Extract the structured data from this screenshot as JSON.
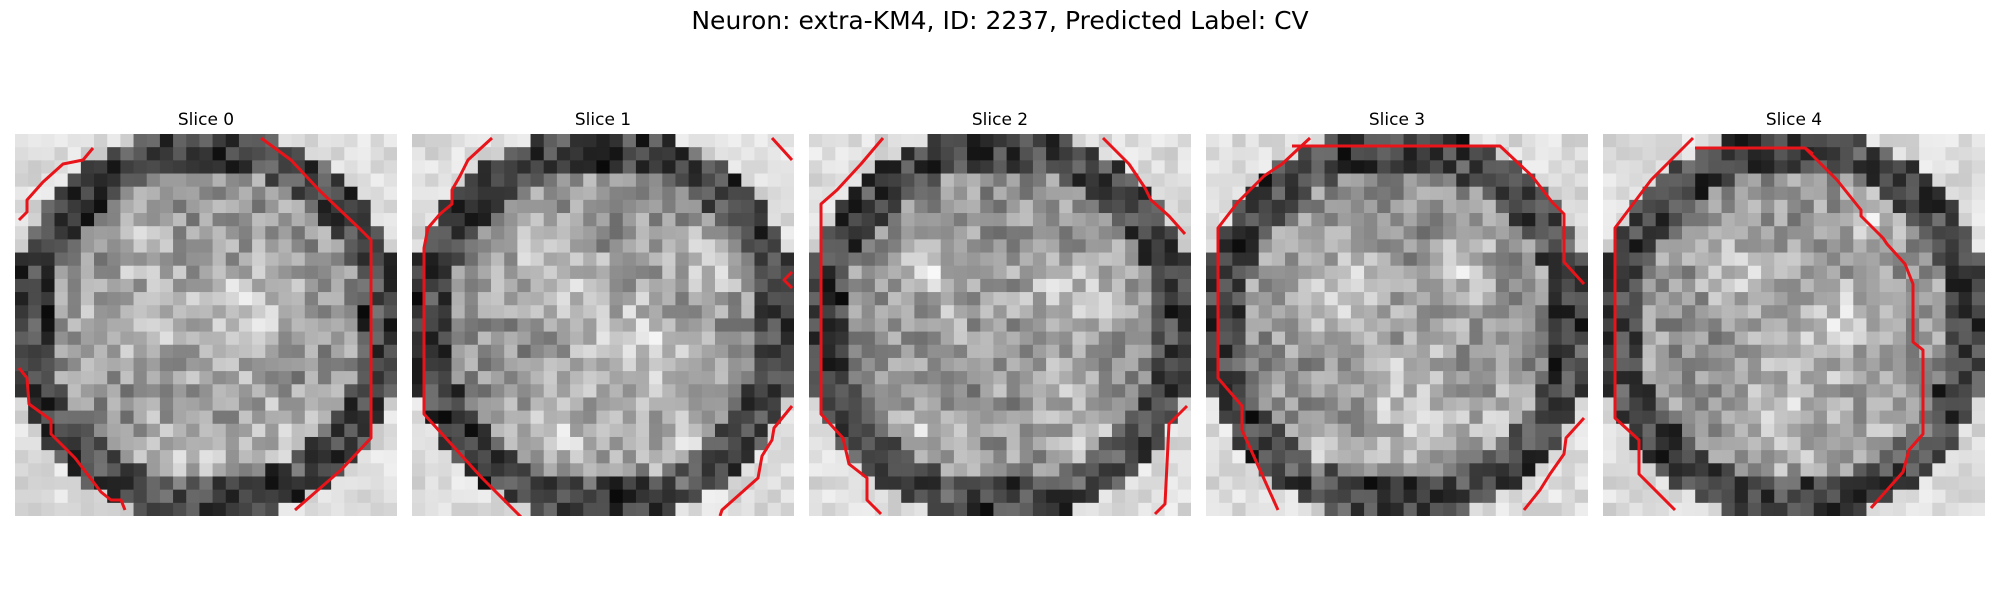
{
  "figure": {
    "title": "Neuron: extra-KM4, ID: 2237, Predicted Label: CV",
    "contour_color": "#e8141a"
  },
  "slices": [
    {
      "title": "Slice 0"
    },
    {
      "title": "Slice 1"
    },
    {
      "title": "Slice 2"
    },
    {
      "title": "Slice 3"
    },
    {
      "title": "Slice 4"
    }
  ]
}
